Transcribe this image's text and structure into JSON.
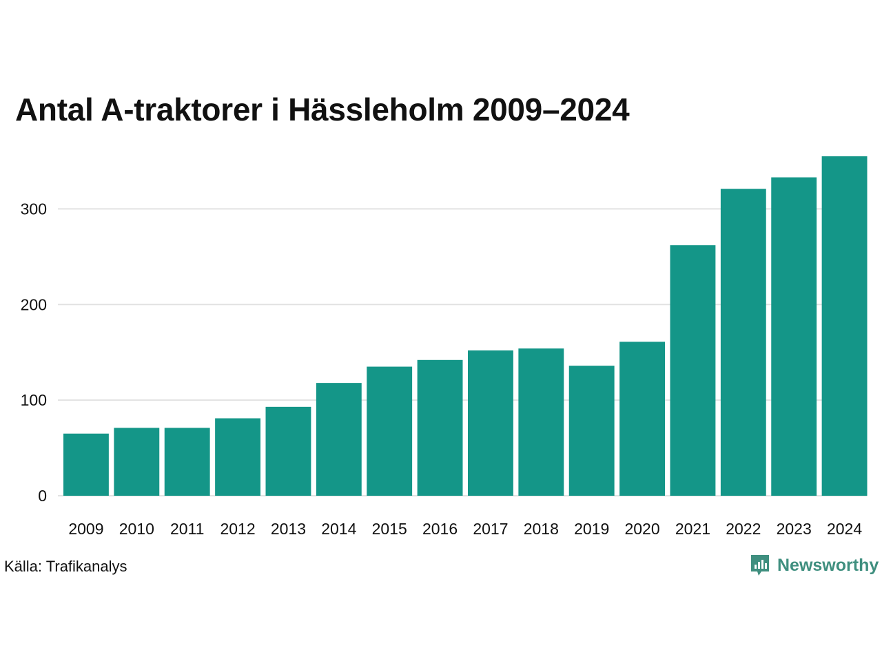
{
  "chart_data": {
    "type": "bar",
    "title": "Antal A-traktorer i Hässleholm 2009–2024",
    "xlabel": "",
    "ylabel": "",
    "categories": [
      "2009",
      "2010",
      "2011",
      "2012",
      "2013",
      "2014",
      "2015",
      "2016",
      "2017",
      "2018",
      "2019",
      "2020",
      "2021",
      "2022",
      "2023",
      "2024"
    ],
    "values": [
      65,
      71,
      71,
      81,
      93,
      118,
      135,
      142,
      152,
      154,
      136,
      161,
      262,
      321,
      333,
      355
    ],
    "ylim": [
      0,
      355
    ],
    "yticks": [
      0,
      100,
      200,
      300
    ],
    "grid": true,
    "legend": "none",
    "bar_color": "#149688"
  },
  "source": "Källa: Trafikanalys",
  "brand": {
    "name": "Newsworthy",
    "color": "#3f8f7f",
    "icon": "newsworthy-logo-icon"
  }
}
